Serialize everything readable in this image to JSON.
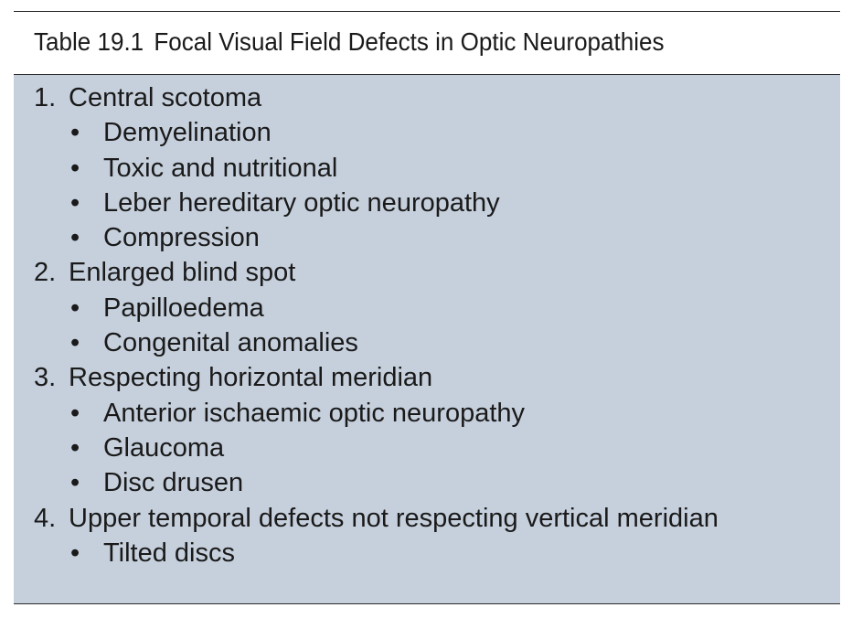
{
  "table": {
    "label": "Table 19.1",
    "title": "Focal Visual Field Defects in Optic Neuropathies",
    "items": [
      {
        "number": "1.",
        "text": "Central scotoma",
        "subitems": [
          "Demyelination",
          "Toxic and nutritional",
          "Leber hereditary optic neuropathy",
          "Compression"
        ]
      },
      {
        "number": "2.",
        "text": "Enlarged blind spot",
        "subitems": [
          "Papilloedema",
          "Congenital anomalies"
        ]
      },
      {
        "number": "3.",
        "text": "Respecting horizontal meridian",
        "subitems": [
          "Anterior ischaemic optic neuropathy",
          "Glaucoma",
          "Disc drusen"
        ]
      },
      {
        "number": "4.",
        "text": "Upper temporal defects not respecting vertical meridian",
        "subitems": [
          "Tilted discs"
        ]
      }
    ],
    "bullet_glyph": "•",
    "panel_color": "#c6d0dd"
  }
}
